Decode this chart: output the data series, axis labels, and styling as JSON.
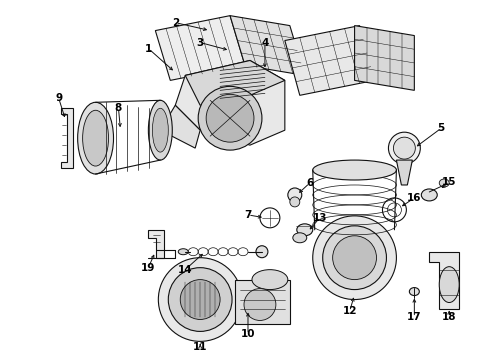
{
  "bg_color": "#ffffff",
  "line_color": "#111111",
  "label_color": "#000000",
  "fig_w": 4.9,
  "fig_h": 3.6,
  "dpi": 100
}
